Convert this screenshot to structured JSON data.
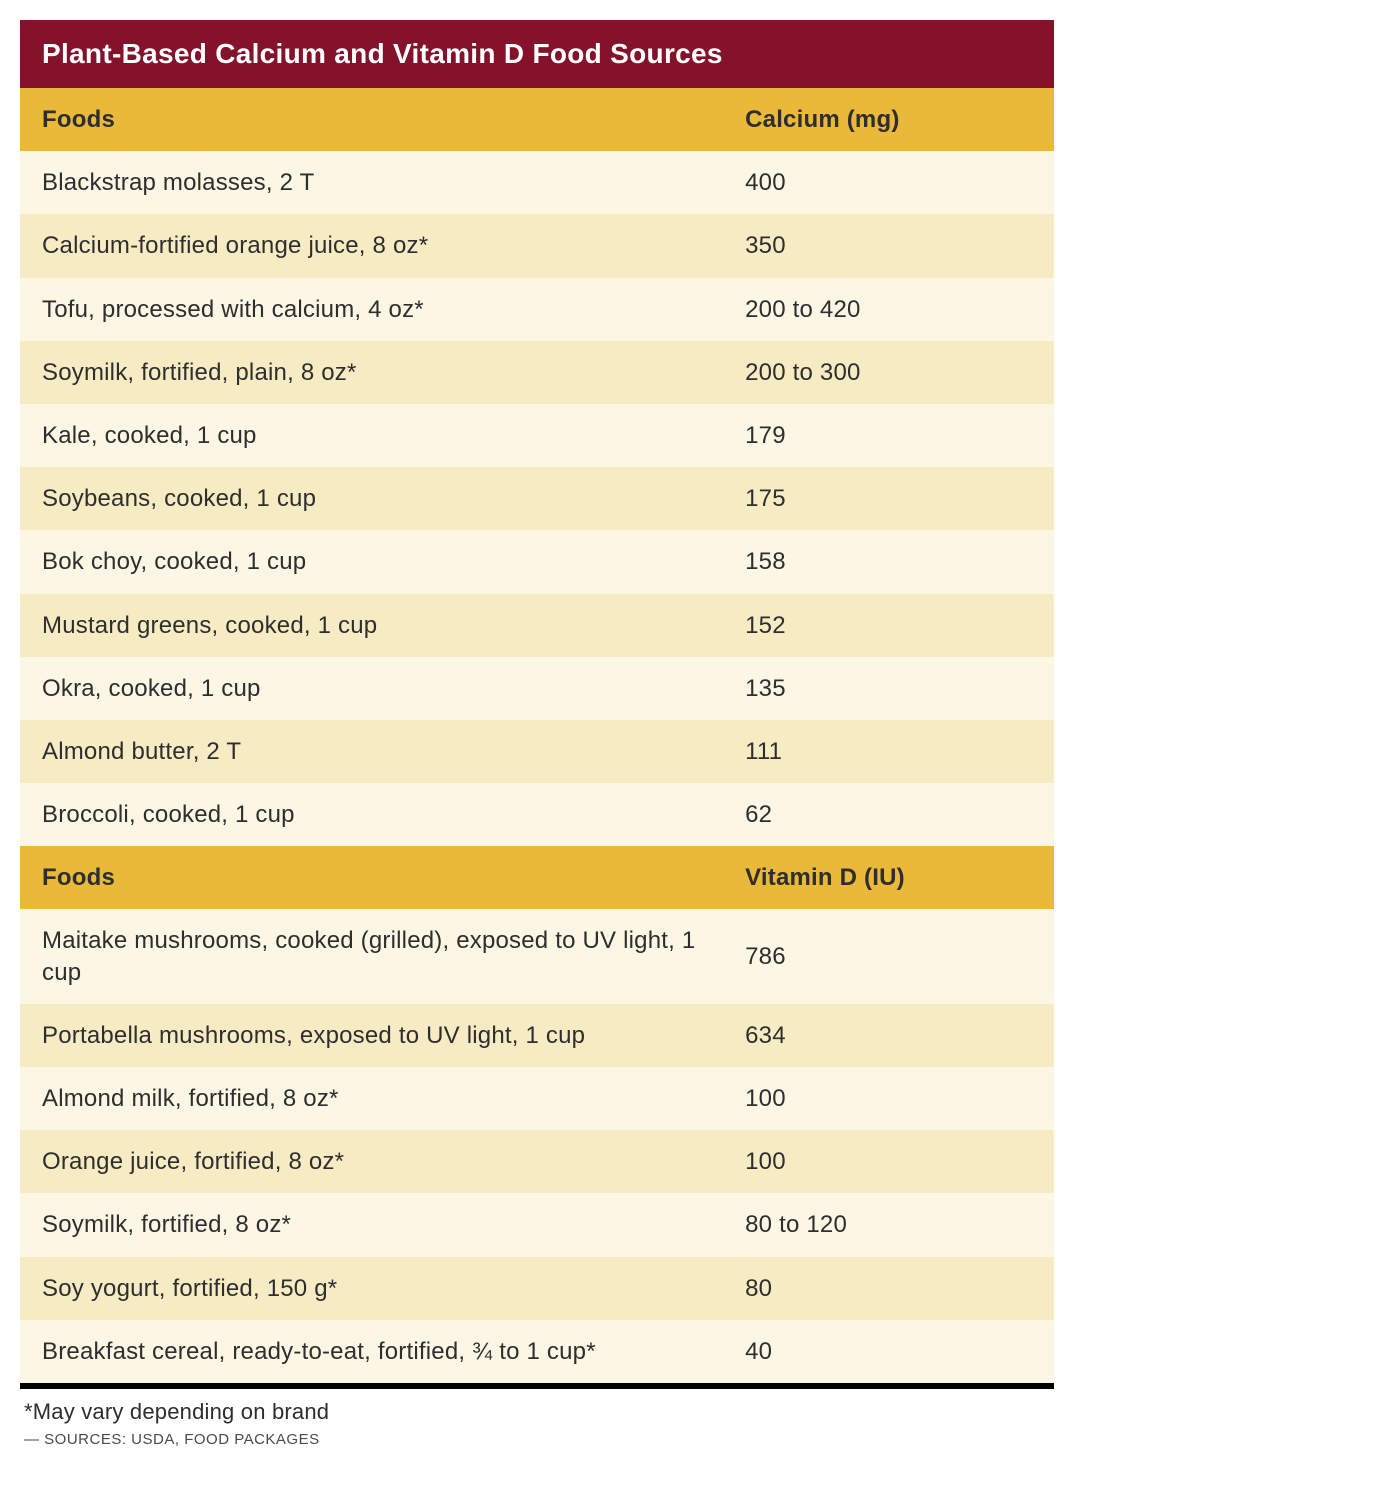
{
  "title": "Plant-Based Calcium and Vitamin D Food Sources",
  "colors": {
    "title_bg": "#84122a",
    "title_text": "#ffffff",
    "header_bg": "#eab93a",
    "row_even": "#f7ebc4",
    "row_odd": "#fcf7e4",
    "text": "#2e2e2e",
    "rule": "#000000"
  },
  "fontsize": {
    "title": 28,
    "header": 24,
    "cell": 24,
    "footnote": 22,
    "sources": 15
  },
  "sections": [
    {
      "col_food_label": "Foods",
      "col_value_label": "Calcium (mg)",
      "rows": [
        {
          "food": "Blackstrap molasses, 2 T",
          "value": "400"
        },
        {
          "food": "Calcium-fortified orange juice, 8 oz*",
          "value": "350"
        },
        {
          "food": "Tofu, processed with calcium, 4 oz*",
          "value": "200 to 420"
        },
        {
          "food": "Soymilk, fortified, plain, 8 oz*",
          "value": "200 to 300"
        },
        {
          "food": "Kale, cooked, 1 cup",
          "value": "179"
        },
        {
          "food": "Soybeans, cooked, 1 cup",
          "value": "175"
        },
        {
          "food": "Bok choy, cooked, 1 cup",
          "value": "158"
        },
        {
          "food": "Mustard greens, cooked, 1 cup",
          "value": "152"
        },
        {
          "food": "Okra, cooked, 1 cup",
          "value": "135"
        },
        {
          "food": "Almond butter, 2 T",
          "value": "111"
        },
        {
          "food": "Broccoli, cooked, 1 cup",
          "value": "62"
        }
      ]
    },
    {
      "col_food_label": "Foods",
      "col_value_label": "Vitamin D (IU)",
      "rows": [
        {
          "food": "Maitake mushrooms, cooked (grilled), exposed to UV light, 1 cup",
          "value": "786"
        },
        {
          "food": "Portabella mushrooms, exposed to UV light, 1 cup",
          "value": "634"
        },
        {
          "food": "Almond milk, fortified, 8 oz*",
          "value": "100"
        },
        {
          "food": "Orange juice, fortified, 8 oz*",
          "value": "100"
        },
        {
          "food": "Soymilk, fortified, 8 oz*",
          "value": "80 to 120"
        },
        {
          "food": "Soy yogurt, fortified, 150 g*",
          "value": "80"
        },
        {
          "food": "Breakfast cereal, ready-to-eat, fortified, ¾ to 1 cup*",
          "value": "40"
        }
      ]
    }
  ],
  "footnote": "*May vary depending on brand",
  "sources": "— SOURCES: USDA, FOOD PACKAGES"
}
